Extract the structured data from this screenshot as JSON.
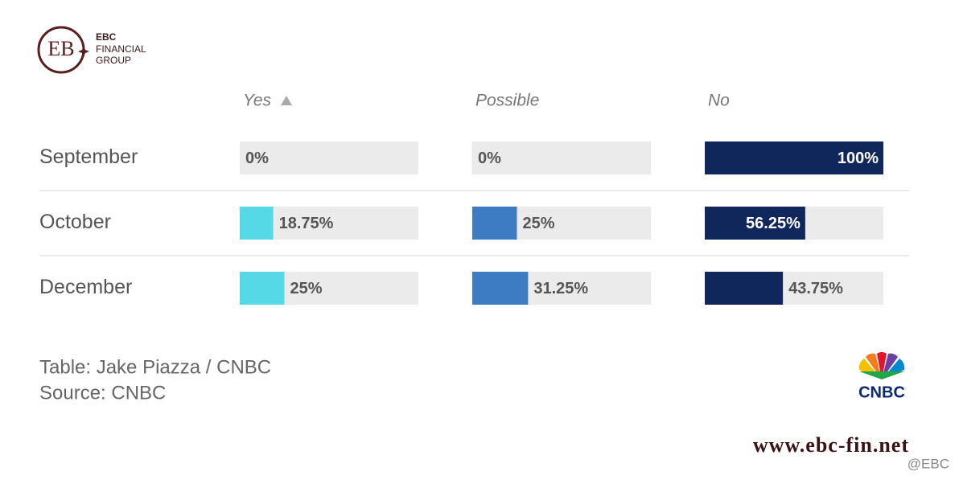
{
  "logo": {
    "name": "EBC",
    "line2": "FINANCIAL",
    "line3": "GROUP"
  },
  "table": {
    "columns": [
      "Yes",
      "Possible",
      "No"
    ],
    "colors": [
      "#55d9e6",
      "#3d7bc3",
      "#10275c"
    ],
    "xlim": [
      0,
      100
    ],
    "rows": [
      {
        "label": "September",
        "values": [
          0,
          0,
          100
        ],
        "value_labels": [
          "0%",
          "0%",
          "100%"
        ]
      },
      {
        "label": "October",
        "values": [
          18.75,
          25,
          56.25
        ],
        "value_labels": [
          "18.75%",
          "25%",
          "56.25%"
        ]
      },
      {
        "label": "December",
        "values": [
          25,
          31.25,
          43.75
        ],
        "value_labels": [
          "25%",
          "31.25%",
          "43.75%"
        ]
      }
    ]
  },
  "footer": {
    "credit": "Table: Jake Piazza / CNBC",
    "source": "Source: CNBC",
    "brand": "CNBC"
  },
  "website": "www.ebc-fin.net",
  "watermark": "@EBC"
}
